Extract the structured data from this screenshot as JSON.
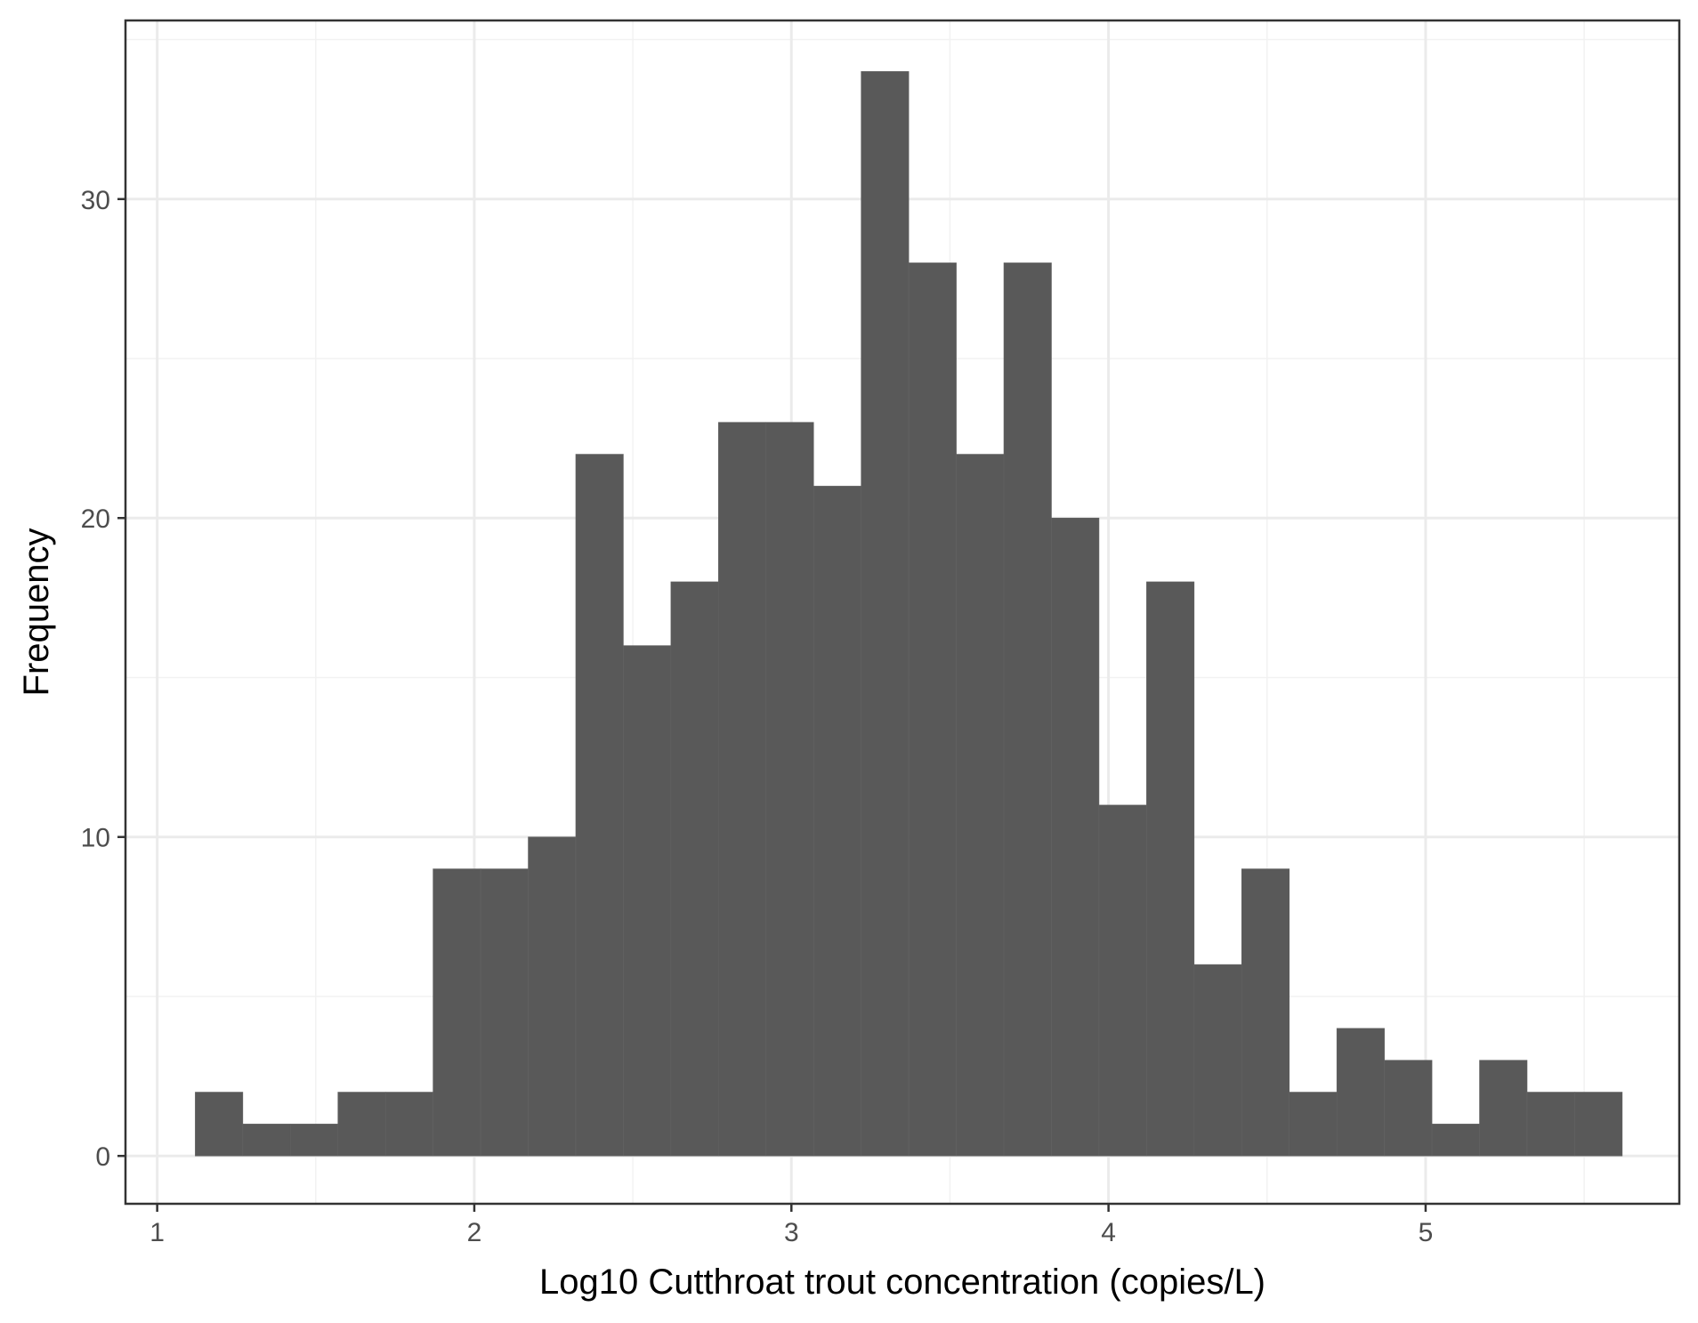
{
  "chart_data": {
    "type": "bar",
    "subtype": "histogram",
    "title": "",
    "xlabel": "Log10 Cutthroat trout concentration (copies/L)",
    "ylabel": "Frequency",
    "xlim": [
      0.9,
      5.8
    ],
    "ylim": [
      -1.5,
      35.6
    ],
    "xticks": [
      1,
      2,
      3,
      4,
      5
    ],
    "xtick_labels": [
      "1",
      "2",
      "3",
      "4",
      "5"
    ],
    "yticks": [
      0,
      10,
      20,
      30
    ],
    "ytick_labels": [
      "0",
      "10",
      "20",
      "30"
    ],
    "grid": true,
    "bin_width": 0.15,
    "bins": [
      {
        "x0": 1.12,
        "x1": 1.27,
        "count": 2
      },
      {
        "x0": 1.27,
        "x1": 1.42,
        "count": 1
      },
      {
        "x0": 1.42,
        "x1": 1.57,
        "count": 1
      },
      {
        "x0": 1.57,
        "x1": 1.72,
        "count": 2
      },
      {
        "x0": 1.72,
        "x1": 1.87,
        "count": 2
      },
      {
        "x0": 1.87,
        "x1": 2.02,
        "count": 9
      },
      {
        "x0": 2.02,
        "x1": 2.17,
        "count": 9
      },
      {
        "x0": 2.17,
        "x1": 2.32,
        "count": 10
      },
      {
        "x0": 2.32,
        "x1": 2.47,
        "count": 22
      },
      {
        "x0": 2.47,
        "x1": 2.62,
        "count": 16
      },
      {
        "x0": 2.62,
        "x1": 2.77,
        "count": 18
      },
      {
        "x0": 2.77,
        "x1": 2.92,
        "count": 23
      },
      {
        "x0": 2.92,
        "x1": 3.07,
        "count": 23
      },
      {
        "x0": 3.07,
        "x1": 3.22,
        "count": 21
      },
      {
        "x0": 3.22,
        "x1": 3.37,
        "count": 34
      },
      {
        "x0": 3.37,
        "x1": 3.52,
        "count": 28
      },
      {
        "x0": 3.52,
        "x1": 3.67,
        "count": 22
      },
      {
        "x0": 3.67,
        "x1": 3.82,
        "count": 28
      },
      {
        "x0": 3.82,
        "x1": 3.97,
        "count": 20
      },
      {
        "x0": 3.97,
        "x1": 4.12,
        "count": 11
      },
      {
        "x0": 4.12,
        "x1": 4.27,
        "count": 18
      },
      {
        "x0": 4.27,
        "x1": 4.42,
        "count": 6
      },
      {
        "x0": 4.42,
        "x1": 4.57,
        "count": 9
      },
      {
        "x0": 4.57,
        "x1": 4.72,
        "count": 2
      },
      {
        "x0": 4.72,
        "x1": 4.87,
        "count": 4
      },
      {
        "x0": 4.87,
        "x1": 5.02,
        "count": 3
      },
      {
        "x0": 5.02,
        "x1": 5.17,
        "count": 1
      },
      {
        "x0": 5.17,
        "x1": 5.32,
        "count": 3
      },
      {
        "x0": 5.32,
        "x1": 5.47,
        "count": 2
      },
      {
        "x0": 5.47,
        "x1": 5.62,
        "count": 2
      }
    ],
    "colors": {
      "bar_fill": "#595959",
      "panel_border": "#333333",
      "grid": "#ebebeb",
      "background": "#ffffff"
    }
  }
}
